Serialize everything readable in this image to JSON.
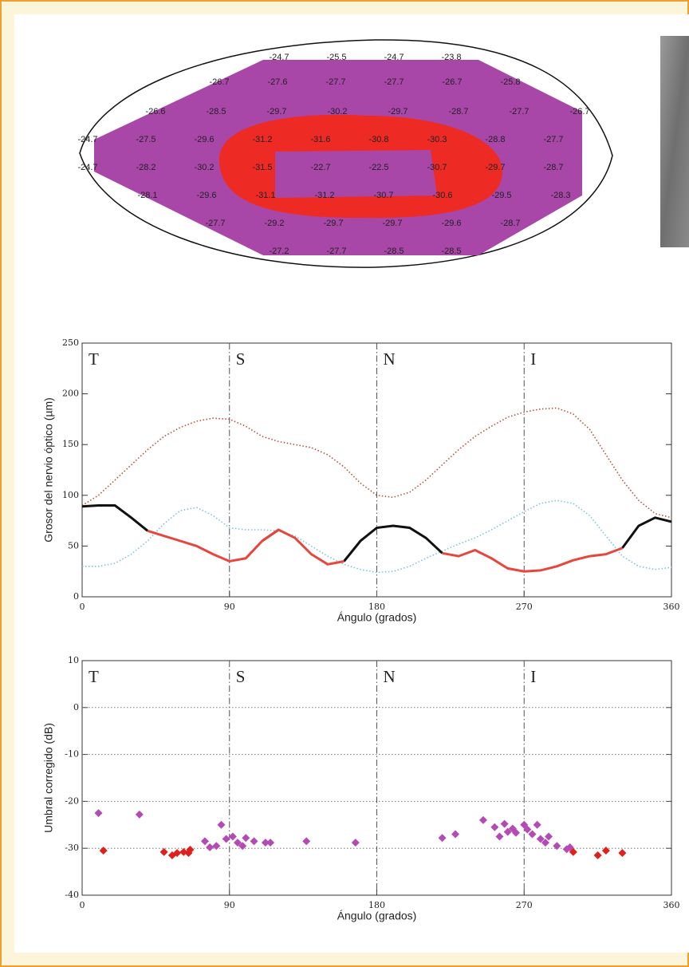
{
  "field_map": {
    "rows": [
      [
        -24.7,
        -25.5,
        -24.7,
        -23.8
      ],
      [
        -26.7,
        -27.6,
        -27.7,
        -27.7,
        -26.7,
        -25.8
      ],
      [
        -26.6,
        -28.5,
        -29.7,
        -30.2,
        -29.7,
        -28.7,
        -27.7,
        -26.7
      ],
      [
        -24.7,
        -27.5,
        -29.6,
        -31.2,
        -31.6,
        -30.8,
        -30.3,
        -28.8,
        -27.7
      ],
      [
        -24.7,
        -28.2,
        -30.2,
        -31.5,
        -22.7,
        -22.5,
        -30.7,
        -29.7,
        -28.7
      ],
      [
        -28.1,
        -29.6,
        -31.1,
        -31.2,
        -30.7,
        -30.6,
        -29.5,
        -28.3
      ],
      [
        -27.7,
        -29.2,
        -29.7,
        -29.7,
        -29.6,
        -28.7
      ],
      [
        -27.2,
        -27.7,
        -28.5,
        -28.5
      ]
    ]
  },
  "chart_data": [
    {
      "type": "line",
      "xlabel": "Ángulo (grados)",
      "ylabel": "Grosor del nervio óptico (µm)",
      "sectors": [
        "T",
        "S",
        "N",
        "I"
      ],
      "xlim": [
        0,
        360
      ],
      "xticks": [
        0,
        90,
        180,
        270,
        360
      ],
      "ylim": [
        0,
        250
      ],
      "yticks": [
        0,
        50,
        100,
        150,
        200,
        250
      ],
      "x": [
        0,
        10,
        20,
        30,
        40,
        50,
        60,
        70,
        80,
        90,
        100,
        110,
        120,
        130,
        140,
        150,
        160,
        170,
        180,
        190,
        200,
        210,
        220,
        230,
        240,
        250,
        260,
        270,
        280,
        290,
        300,
        310,
        320,
        330,
        340,
        350,
        360
      ],
      "series": [
        {
          "color": "#b5503a",
          "style": "dotted",
          "values": [
            90,
            100,
            115,
            130,
            145,
            158,
            167,
            173,
            176,
            175,
            168,
            158,
            153,
            150,
            147,
            140,
            128,
            112,
            100,
            98,
            103,
            115,
            130,
            145,
            158,
            168,
            177,
            182,
            185,
            186,
            180,
            165,
            140,
            115,
            95,
            82,
            78
          ]
        },
        {
          "color": "#7ec3d6",
          "style": "dotted",
          "values": [
            30,
            30,
            33,
            42,
            55,
            72,
            85,
            88,
            80,
            68,
            66,
            66,
            65,
            60,
            50,
            40,
            32,
            27,
            24,
            25,
            30,
            38,
            45,
            52,
            58,
            66,
            75,
            84,
            92,
            95,
            92,
            80,
            60,
            40,
            30,
            27,
            29
          ]
        },
        {
          "color": "#111111",
          "style": "solid",
          "values": [
            89,
            90,
            90,
            78,
            65,
            null,
            null,
            null,
            null,
            null,
            null,
            55,
            66,
            null,
            null,
            null,
            35,
            55,
            68,
            70,
            68,
            58,
            43,
            null,
            null,
            null,
            null,
            null,
            null,
            null,
            null,
            null,
            null,
            48,
            70,
            78,
            74
          ]
        },
        {
          "color": "#e8463c",
          "style": "solid",
          "values": [
            null,
            null,
            null,
            null,
            65,
            60,
            55,
            50,
            42,
            35,
            38,
            55,
            66,
            58,
            42,
            32,
            35,
            null,
            null,
            null,
            null,
            null,
            43,
            40,
            46,
            38,
            28,
            25,
            26,
            30,
            36,
            40,
            42,
            48,
            null,
            null,
            null
          ]
        }
      ]
    },
    {
      "type": "scatter",
      "xlabel": "Ángulo (grados)",
      "ylabel": "Umbral corregido (dB)",
      "sectors": [
        "T",
        "S",
        "N",
        "I"
      ],
      "xlim": [
        0,
        360
      ],
      "xticks": [
        0,
        90,
        180,
        270,
        360
      ],
      "ylim": [
        -40,
        10
      ],
      "yticks": [
        10,
        0,
        -10,
        -20,
        -30,
        -40
      ],
      "grid": true,
      "series": [
        {
          "color": "#b44bb4",
          "x": [
            10,
            35,
            75,
            78,
            82,
            85,
            88,
            92,
            95,
            98,
            100,
            105,
            112,
            115,
            137,
            167,
            220,
            228,
            245,
            252,
            255,
            258,
            260,
            263,
            265,
            270,
            272,
            275,
            278,
            280,
            283,
            285,
            290,
            296,
            298
          ],
          "values": [
            -22.5,
            -22.8,
            -28.5,
            -29.8,
            -29.5,
            -25,
            -28,
            -27.5,
            -28.8,
            -29.5,
            -27.8,
            -28.5,
            -28.8,
            -28.8,
            -28.5,
            -28.8,
            -27.8,
            -27,
            -24,
            -25.5,
            -27.5,
            -24.8,
            -26.5,
            -25.8,
            -26.7,
            -25,
            -26,
            -27,
            -25,
            -28,
            -28.8,
            -27.5,
            -29.5,
            -30.2,
            -29.8
          ]
        },
        {
          "color": "#e0201a",
          "x": [
            13,
            50,
            55,
            58,
            62,
            65,
            66,
            300,
            315,
            320,
            330
          ],
          "values": [
            -30.5,
            -30.8,
            -31.5,
            -31,
            -30.8,
            -31,
            -30.3,
            -30.8,
            -31.5,
            -30.5,
            -31
          ]
        }
      ]
    }
  ]
}
